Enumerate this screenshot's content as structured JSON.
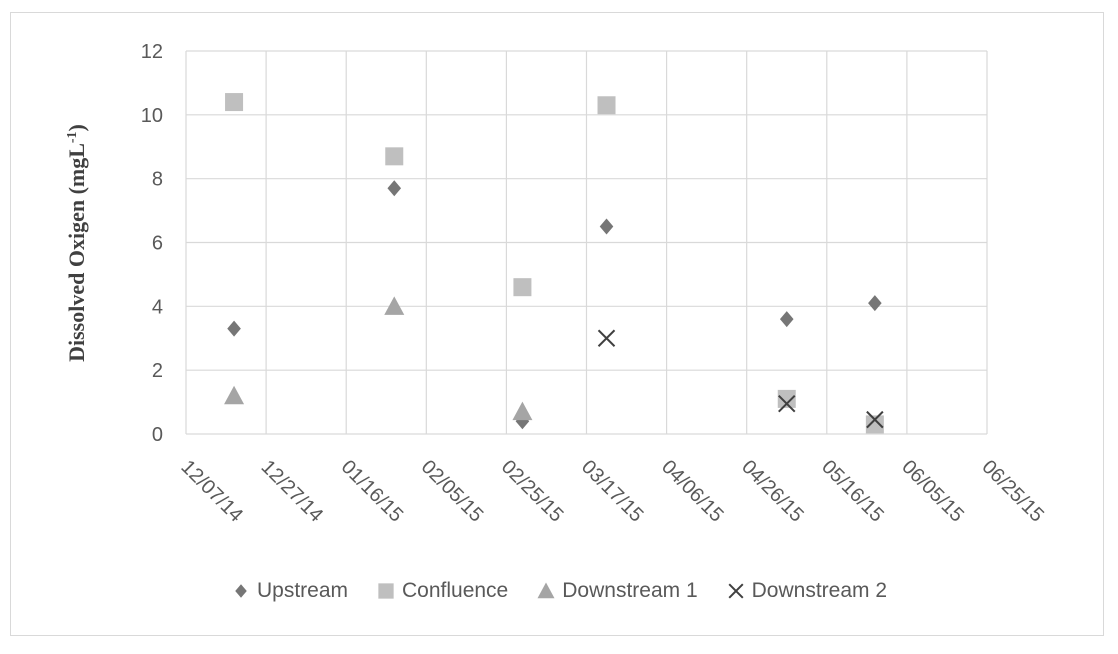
{
  "chart_data": {
    "type": "scatter",
    "ylabel": "Dissolved Oxigen  (mgL",
    "ylabel_sup": "-1",
    "ylabel_close": ")",
    "xlabel": "",
    "ylim": [
      0,
      12
    ],
    "yticks": [
      0,
      2,
      4,
      6,
      8,
      10,
      12
    ],
    "x_axis": "date",
    "xlim": [
      "2014-12-07",
      "2015-06-25"
    ],
    "xticks": [
      "12/07/14",
      "12/27/14",
      "01/16/15",
      "02/05/15",
      "02/25/15",
      "03/17/15",
      "04/06/15",
      "04/26/15",
      "05/16/15",
      "06/05/15",
      "06/25/15"
    ],
    "grid": true,
    "legend_position": "bottom",
    "series": [
      {
        "name": "Upstream",
        "marker": "diamond",
        "color": "#767676",
        "points": [
          {
            "x": "2014-12-19",
            "y": 3.3
          },
          {
            "x": "2015-01-28",
            "y": 7.7
          },
          {
            "x": "2015-03-01",
            "y": 0.4
          },
          {
            "x": "2015-03-22",
            "y": 6.5
          },
          {
            "x": "2015-05-06",
            "y": 3.6
          },
          {
            "x": "2015-05-28",
            "y": 4.1
          }
        ]
      },
      {
        "name": "Confluence",
        "marker": "square",
        "color": "#bfbfbf",
        "points": [
          {
            "x": "2014-12-19",
            "y": 10.4
          },
          {
            "x": "2015-01-28",
            "y": 8.7
          },
          {
            "x": "2015-03-01",
            "y": 4.6
          },
          {
            "x": "2015-03-22",
            "y": 10.3
          },
          {
            "x": "2015-05-06",
            "y": 1.1
          },
          {
            "x": "2015-05-28",
            "y": 0.3
          }
        ]
      },
      {
        "name": "Downstream 1",
        "marker": "triangle",
        "color": "#a5a5a5",
        "points": [
          {
            "x": "2014-12-19",
            "y": 1.2
          },
          {
            "x": "2015-01-28",
            "y": 4.0
          },
          {
            "x": "2015-03-01",
            "y": 0.7
          }
        ]
      },
      {
        "name": "Downstream 2",
        "marker": "x",
        "color": "#404040",
        "points": [
          {
            "x": "2015-03-22",
            "y": 3.0
          },
          {
            "x": "2015-05-06",
            "y": 0.95
          },
          {
            "x": "2015-05-28",
            "y": 0.45
          }
        ]
      }
    ]
  }
}
